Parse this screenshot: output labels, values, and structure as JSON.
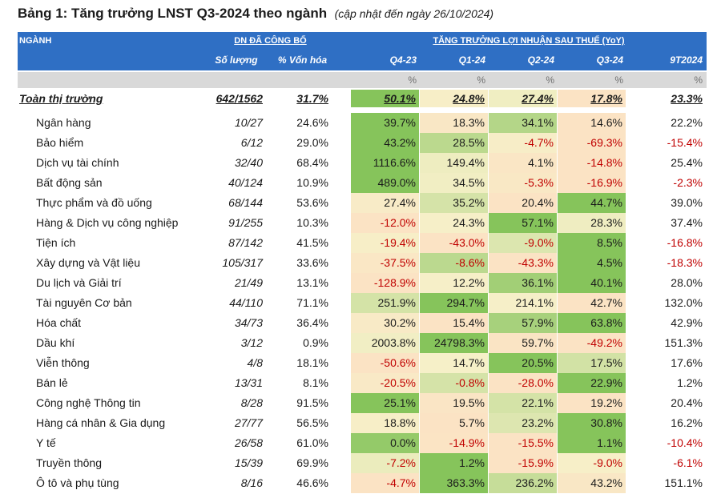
{
  "title": {
    "main": "Bảng 1: Tăng trưởng LNST Q3-2024 theo ngành",
    "note": "(cập nhật đến ngày 26/10/2024)"
  },
  "header": {
    "sector": "NGÀNH",
    "group_companies": "DN ĐÃ CÔNG BỐ",
    "group_growth": "TĂNG TRƯỞNG LỢI NHUẬN SAU THUẾ (YoY)",
    "columns": [
      "Số lượng",
      "% Vốn hóa",
      "Q4-23",
      "Q1-24",
      "Q2-24",
      "Q3-24",
      "9T2024"
    ],
    "unit": "%"
  },
  "colors": {
    "header_bg": "#2f6fc4",
    "unit_row_bg": "#d9d9d9",
    "negative_text": "#c00000",
    "scale_min": "#fbe3c4",
    "scale_mid": "#f6f0c8",
    "scale_max": "#86c45b"
  },
  "total": {
    "name": "Toàn thị trường",
    "count": "642/1562",
    "cap": "31.7%",
    "growth": [
      "50.1%",
      "24.8%",
      "27.4%",
      "17.8%"
    ],
    "ytd": "23.3%"
  },
  "rows": [
    {
      "name": "Ngân hàng",
      "count": "10/27",
      "cap": "24.6%",
      "growth": [
        "39.7%",
        "18.3%",
        "34.1%",
        "14.6%"
      ],
      "ytd": "22.2%"
    },
    {
      "name": "Bảo hiểm",
      "count": "6/12",
      "cap": "29.0%",
      "growth": [
        "43.2%",
        "28.5%",
        "-4.7%",
        "-69.3%"
      ],
      "ytd": "-15.4%"
    },
    {
      "name": "Dịch vụ tài chính",
      "count": "32/40",
      "cap": "68.4%",
      "growth": [
        "1116.6%",
        "149.4%",
        "4.1%",
        "-14.8%"
      ],
      "ytd": "25.4%"
    },
    {
      "name": "Bất động sản",
      "count": "40/124",
      "cap": "10.9%",
      "growth": [
        "489.0%",
        "34.5%",
        "-5.3%",
        "-16.9%"
      ],
      "ytd": "-2.3%"
    },
    {
      "name": "Thực phẩm và đồ uống",
      "count": "68/144",
      "cap": "53.6%",
      "growth": [
        "27.4%",
        "35.2%",
        "20.4%",
        "44.7%"
      ],
      "ytd": "39.0%"
    },
    {
      "name": "Hàng & Dịch vụ công nghiệp",
      "count": "91/255",
      "cap": "10.3%",
      "growth": [
        "-12.0%",
        "24.3%",
        "57.1%",
        "28.3%"
      ],
      "ytd": "37.4%"
    },
    {
      "name": "Tiện ích",
      "count": "87/142",
      "cap": "41.5%",
      "growth": [
        "-19.4%",
        "-43.0%",
        "-9.0%",
        "8.5%"
      ],
      "ytd": "-16.8%"
    },
    {
      "name": "Xây dựng và Vật liệu",
      "count": "105/317",
      "cap": "33.6%",
      "growth": [
        "-37.5%",
        "-8.6%",
        "-43.3%",
        "4.5%"
      ],
      "ytd": "-18.3%"
    },
    {
      "name": "Du lịch và Giải trí",
      "count": "21/49",
      "cap": "13.1%",
      "growth": [
        "-128.9%",
        "12.2%",
        "36.1%",
        "40.1%"
      ],
      "ytd": "28.0%"
    },
    {
      "name": "Tài nguyên Cơ bản",
      "count": "44/110",
      "cap": "71.1%",
      "growth": [
        "251.9%",
        "294.7%",
        "214.1%",
        "42.7%"
      ],
      "ytd": "132.0%"
    },
    {
      "name": "Hóa chất",
      "count": "34/73",
      "cap": "36.4%",
      "growth": [
        "30.2%",
        "15.4%",
        "57.9%",
        "63.8%"
      ],
      "ytd": "42.9%"
    },
    {
      "name": "Dầu khí",
      "count": "3/12",
      "cap": "0.9%",
      "growth": [
        "2003.8%",
        "24798.3%",
        "59.7%",
        "-49.2%"
      ],
      "ytd": "151.3%"
    },
    {
      "name": "Viễn thông",
      "count": "4/8",
      "cap": "18.1%",
      "growth": [
        "-50.6%",
        "14.7%",
        "20.5%",
        "17.5%"
      ],
      "ytd": "17.6%"
    },
    {
      "name": "Bán lẻ",
      "count": "13/31",
      "cap": "8.1%",
      "growth": [
        "-20.5%",
        "-0.8%",
        "-28.0%",
        "22.9%"
      ],
      "ytd": "1.2%"
    },
    {
      "name": "Công nghệ Thông tin",
      "count": "8/28",
      "cap": "91.5%",
      "growth": [
        "25.1%",
        "19.5%",
        "22.1%",
        "19.2%"
      ],
      "ytd": "20.4%"
    },
    {
      "name": "Hàng cá nhân & Gia dụng",
      "count": "27/77",
      "cap": "56.5%",
      "growth": [
        "18.8%",
        "5.7%",
        "23.2%",
        "30.8%"
      ],
      "ytd": "16.2%"
    },
    {
      "name": "Y tế",
      "count": "26/58",
      "cap": "61.0%",
      "growth": [
        "0.0%",
        "-14.9%",
        "-15.5%",
        "1.1%"
      ],
      "ytd": "-10.4%"
    },
    {
      "name": "Truyền thông",
      "count": "15/39",
      "cap": "69.9%",
      "growth": [
        "-7.2%",
        "1.2%",
        "-15.9%",
        "-9.0%"
      ],
      "ytd": "-6.1%"
    },
    {
      "name": "Ô tô và phụ tùng",
      "count": "8/16",
      "cap": "46.6%",
      "growth": [
        "-4.7%",
        "363.3%",
        "236.2%",
        "43.2%"
      ],
      "ytd": "151.1%"
    }
  ]
}
